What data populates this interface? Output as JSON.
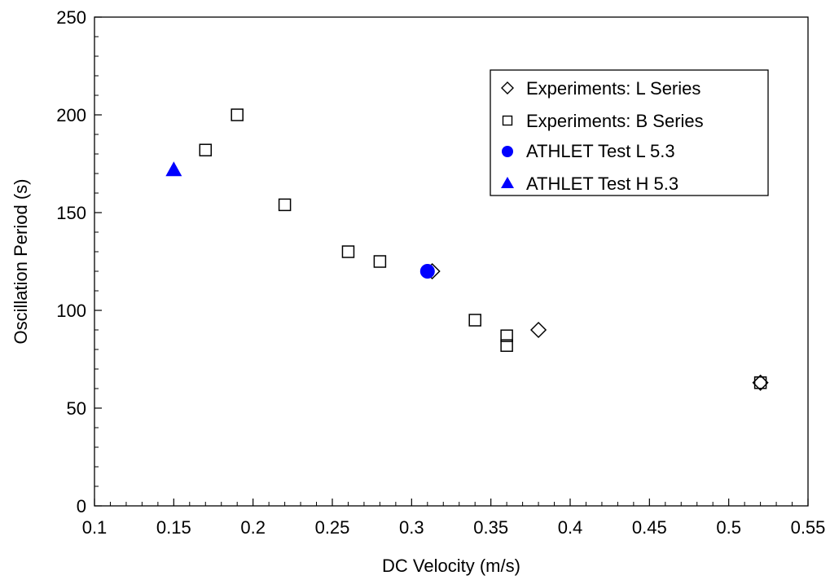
{
  "chart_data": {
    "type": "scatter",
    "xlabel": "DC Velocity (m/s)",
    "ylabel": "Oscillation Period (s)",
    "xlim": [
      0.1,
      0.55
    ],
    "ylim": [
      0,
      250
    ],
    "x_ticks": [
      "0.1",
      "0.15",
      "0.2",
      "0.25",
      "0.3",
      "0.35",
      "0.4",
      "0.45",
      "0.5",
      "0.55"
    ],
    "y_ticks": [
      "0",
      "50",
      "100",
      "150",
      "200",
      "250"
    ],
    "grid": false,
    "legend_position": "top-right",
    "series": [
      {
        "name": "Experiments: L Series",
        "marker": "diamond-open",
        "color": "#000000",
        "points": [
          [
            0.313,
            120
          ],
          [
            0.38,
            90
          ],
          [
            0.52,
            63
          ]
        ]
      },
      {
        "name": "Experiments: B Series",
        "marker": "square-open",
        "color": "#000000",
        "points": [
          [
            0.17,
            182
          ],
          [
            0.19,
            200
          ],
          [
            0.22,
            154
          ],
          [
            0.26,
            130
          ],
          [
            0.28,
            125
          ],
          [
            0.34,
            95
          ],
          [
            0.36,
            87
          ],
          [
            0.36,
            82
          ],
          [
            0.52,
            63
          ]
        ]
      },
      {
        "name": "ATHLET Test L 5.3",
        "marker": "circle-filled",
        "color": "#0000ff",
        "points": [
          [
            0.31,
            120
          ]
        ]
      },
      {
        "name": "ATHLET Test H 5.3",
        "marker": "triangle-filled",
        "color": "#0000ff",
        "points": [
          [
            0.15,
            172
          ]
        ]
      }
    ]
  }
}
